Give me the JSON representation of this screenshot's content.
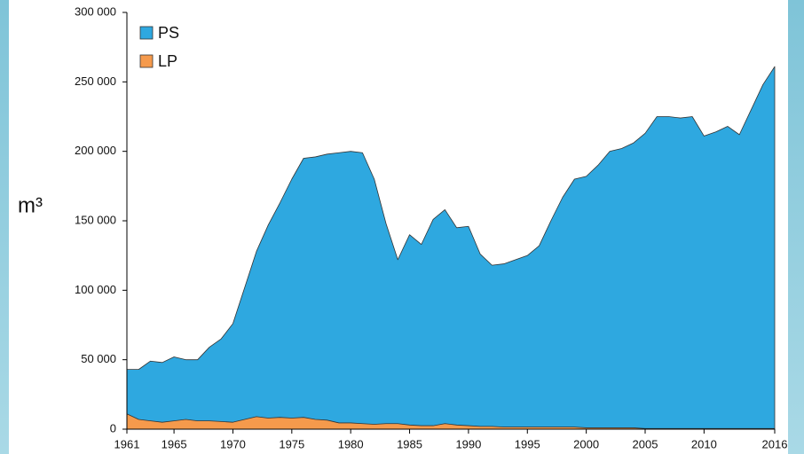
{
  "chart_data": {
    "type": "area",
    "y_label": "m³",
    "x": [
      1961,
      1962,
      1963,
      1964,
      1965,
      1966,
      1967,
      1968,
      1969,
      1970,
      1971,
      1972,
      1973,
      1974,
      1975,
      1976,
      1977,
      1978,
      1979,
      1980,
      1981,
      1982,
      1983,
      1984,
      1985,
      1986,
      1987,
      1988,
      1989,
      1990,
      1991,
      1992,
      1993,
      1994,
      1995,
      1996,
      1997,
      1998,
      1999,
      2000,
      2001,
      2002,
      2003,
      2004,
      2005,
      2006,
      2007,
      2008,
      2009,
      2010,
      2011,
      2012,
      2013,
      2014,
      2015,
      2016
    ],
    "series": [
      {
        "name": "PS",
        "color": "#2ea8e0",
        "values": [
          43000,
          43000,
          49000,
          48000,
          52000,
          50000,
          50000,
          59000,
          65000,
          76000,
          102000,
          128000,
          147000,
          163000,
          180000,
          195000,
          196000,
          198000,
          199000,
          200000,
          199000,
          180000,
          148000,
          122000,
          140000,
          133000,
          151000,
          158000,
          145000,
          146000,
          126000,
          118000,
          119000,
          122000,
          125000,
          132000,
          150000,
          167000,
          180000,
          182000,
          190000,
          200000,
          202000,
          206000,
          213000,
          225000,
          225000,
          224000,
          225000,
          211000,
          214000,
          218000,
          212000,
          230000,
          248000,
          261000
        ]
      },
      {
        "name": "LP",
        "color": "#f59a4c",
        "values": [
          11000,
          7000,
          6000,
          5000,
          6000,
          7000,
          6000,
          6000,
          5500,
          5000,
          7000,
          9000,
          8000,
          8500,
          8000,
          8500,
          7000,
          6500,
          4500,
          4500,
          4000,
          3500,
          4000,
          4000,
          3000,
          2500,
          2500,
          4000,
          3000,
          2500,
          2000,
          2000,
          1500,
          1500,
          1500,
          1500,
          1500,
          1500,
          1500,
          1000,
          1000,
          1000,
          1000,
          1000,
          500,
          500,
          500,
          500,
          500,
          500,
          500,
          500,
          500,
          500,
          500,
          500
        ]
      }
    ],
    "xlim": [
      1961,
      2016
    ],
    "xticks": [
      1961,
      1965,
      1970,
      1975,
      1980,
      1985,
      1990,
      1995,
      2000,
      2005,
      2010,
      2016
    ],
    "ylim": [
      0,
      300000
    ],
    "yticks": [
      0,
      {
        "value": 50000,
        "label": "50 000"
      },
      {
        "value": 100000,
        "label": "100 000"
      },
      {
        "value": 150000,
        "label": "150 000"
      },
      {
        "value": 200000,
        "label": "200 000"
      },
      {
        "value": 250000,
        "label": "250 000"
      },
      {
        "value": 300000,
        "label": "300 000"
      }
    ],
    "legend": "upper left"
  }
}
